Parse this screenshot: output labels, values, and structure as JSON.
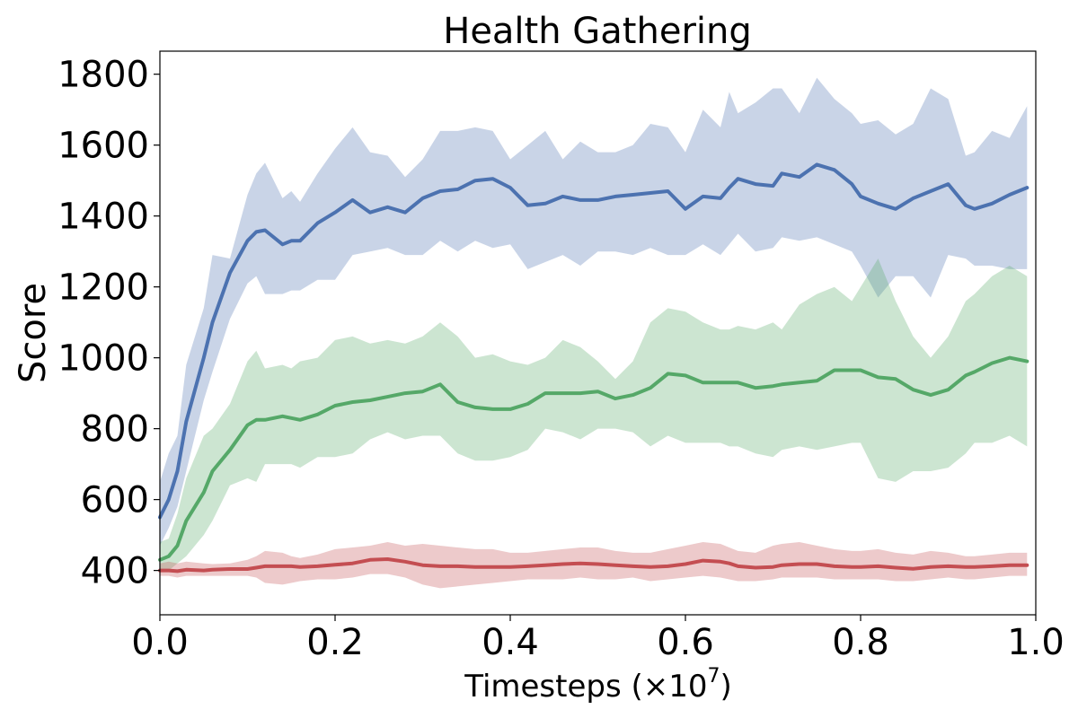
{
  "chart_data": {
    "type": "line",
    "title": "Health Gathering",
    "xlabel": "Timesteps (×10",
    "xlabel_exponent": "7",
    "xlabel_close": ")",
    "ylabel": "Score",
    "xlim": [
      0.0,
      1.0
    ],
    "ylim": [
      275,
      1865
    ],
    "xticks": [
      0.0,
      0.2,
      0.4,
      0.6,
      0.8,
      1.0
    ],
    "xtick_labels": [
      "0.0",
      "0.2",
      "0.4",
      "0.6",
      "0.8",
      "1.0"
    ],
    "yticks": [
      400,
      600,
      800,
      1000,
      1200,
      1400,
      1600,
      1800
    ],
    "ytick_labels": [
      "400",
      "600",
      "800",
      "1000",
      "1200",
      "1400",
      "1600",
      "1800"
    ],
    "grid": false,
    "legend": "none",
    "series": [
      {
        "color": "#4C72B0",
        "band_color": "#C8D3E6",
        "x": [
          0.0,
          0.01,
          0.02,
          0.03,
          0.05,
          0.06,
          0.08,
          0.1,
          0.11,
          0.12,
          0.14,
          0.15,
          0.16,
          0.18,
          0.2,
          0.22,
          0.24,
          0.26,
          0.28,
          0.3,
          0.32,
          0.34,
          0.36,
          0.38,
          0.4,
          0.42,
          0.44,
          0.46,
          0.48,
          0.5,
          0.52,
          0.54,
          0.56,
          0.58,
          0.6,
          0.62,
          0.64,
          0.65,
          0.66,
          0.68,
          0.7,
          0.71,
          0.73,
          0.75,
          0.77,
          0.79,
          0.8,
          0.82,
          0.84,
          0.86,
          0.88,
          0.9,
          0.92,
          0.93,
          0.95,
          0.97,
          0.99
        ],
        "mean": [
          550,
          600,
          680,
          820,
          1000,
          1100,
          1240,
          1330,
          1355,
          1360,
          1320,
          1330,
          1330,
          1380,
          1410,
          1445,
          1410,
          1425,
          1410,
          1450,
          1470,
          1475,
          1500,
          1505,
          1480,
          1430,
          1435,
          1455,
          1445,
          1445,
          1455,
          1460,
          1465,
          1470,
          1420,
          1455,
          1450,
          1480,
          1505,
          1490,
          1485,
          1520,
          1510,
          1545,
          1530,
          1490,
          1455,
          1435,
          1420,
          1450,
          1470,
          1490,
          1430,
          1420,
          1435,
          1460,
          1480
        ],
        "upper": [
          650,
          730,
          780,
          980,
          1140,
          1290,
          1280,
          1460,
          1520,
          1550,
          1450,
          1470,
          1440,
          1520,
          1590,
          1650,
          1580,
          1570,
          1510,
          1560,
          1640,
          1640,
          1650,
          1640,
          1560,
          1600,
          1640,
          1560,
          1610,
          1580,
          1580,
          1600,
          1660,
          1650,
          1580,
          1700,
          1650,
          1750,
          1690,
          1720,
          1760,
          1760,
          1690,
          1790,
          1730,
          1690,
          1660,
          1670,
          1630,
          1660,
          1760,
          1730,
          1570,
          1580,
          1640,
          1620,
          1710
        ],
        "lower": [
          470,
          520,
          580,
          680,
          880,
          960,
          1110,
          1210,
          1230,
          1180,
          1180,
          1190,
          1190,
          1220,
          1220,
          1290,
          1300,
          1310,
          1290,
          1290,
          1330,
          1300,
          1330,
          1310,
          1320,
          1250,
          1270,
          1290,
          1260,
          1300,
          1300,
          1290,
          1310,
          1290,
          1290,
          1320,
          1290,
          1320,
          1350,
          1300,
          1310,
          1340,
          1330,
          1340,
          1320,
          1300,
          1260,
          1170,
          1230,
          1230,
          1170,
          1290,
          1280,
          1260,
          1260,
          1250,
          1250
        ]
      },
      {
        "color": "#55A868",
        "band_color": "#CCE4D1",
        "x": [
          0.0,
          0.01,
          0.02,
          0.03,
          0.05,
          0.06,
          0.08,
          0.1,
          0.11,
          0.12,
          0.14,
          0.15,
          0.16,
          0.18,
          0.2,
          0.22,
          0.24,
          0.26,
          0.28,
          0.3,
          0.32,
          0.34,
          0.36,
          0.38,
          0.4,
          0.42,
          0.44,
          0.46,
          0.48,
          0.5,
          0.52,
          0.54,
          0.56,
          0.58,
          0.6,
          0.62,
          0.64,
          0.65,
          0.66,
          0.68,
          0.7,
          0.71,
          0.73,
          0.75,
          0.77,
          0.79,
          0.8,
          0.82,
          0.84,
          0.86,
          0.88,
          0.9,
          0.92,
          0.93,
          0.95,
          0.97,
          0.99
        ],
        "mean": [
          430,
          440,
          470,
          540,
          620,
          680,
          740,
          810,
          825,
          825,
          835,
          830,
          825,
          840,
          865,
          875,
          880,
          890,
          900,
          905,
          925,
          875,
          860,
          855,
          855,
          870,
          900,
          900,
          900,
          905,
          885,
          895,
          915,
          955,
          950,
          930,
          930,
          930,
          930,
          915,
          920,
          925,
          930,
          935,
          965,
          965,
          965,
          945,
          940,
          910,
          895,
          910,
          950,
          960,
          985,
          1000,
          990
        ],
        "upper": [
          480,
          490,
          560,
          660,
          780,
          800,
          870,
          990,
          1020,
          970,
          980,
          970,
          990,
          1000,
          1050,
          1060,
          1040,
          1050,
          1040,
          1060,
          1100,
          1060,
          1000,
          1010,
          990,
          980,
          1000,
          1050,
          1030,
          990,
          940,
          990,
          1100,
          1140,
          1130,
          1100,
          1080,
          1080,
          1090,
          1080,
          1100,
          1080,
          1150,
          1180,
          1200,
          1160,
          1200,
          1280,
          1160,
          1060,
          1000,
          1060,
          1160,
          1180,
          1230,
          1260,
          1230
        ],
        "lower": [
          400,
          400,
          420,
          440,
          500,
          540,
          640,
          660,
          650,
          700,
          700,
          700,
          690,
          720,
          720,
          730,
          770,
          790,
          770,
          780,
          780,
          730,
          710,
          710,
          720,
          740,
          800,
          790,
          770,
          800,
          800,
          790,
          750,
          780,
          760,
          760,
          760,
          750,
          750,
          730,
          720,
          740,
          750,
          740,
          750,
          760,
          760,
          660,
          650,
          680,
          680,
          690,
          730,
          760,
          760,
          780,
          750
        ]
      },
      {
        "color": "#C44E52",
        "band_color": "#EDC4C5",
        "x": [
          0.0,
          0.01,
          0.02,
          0.03,
          0.05,
          0.06,
          0.08,
          0.1,
          0.11,
          0.12,
          0.14,
          0.15,
          0.16,
          0.18,
          0.2,
          0.22,
          0.24,
          0.26,
          0.28,
          0.3,
          0.32,
          0.34,
          0.36,
          0.38,
          0.4,
          0.42,
          0.44,
          0.46,
          0.48,
          0.5,
          0.52,
          0.54,
          0.56,
          0.58,
          0.6,
          0.62,
          0.64,
          0.65,
          0.66,
          0.68,
          0.7,
          0.71,
          0.73,
          0.75,
          0.77,
          0.79,
          0.8,
          0.82,
          0.84,
          0.86,
          0.88,
          0.9,
          0.92,
          0.93,
          0.95,
          0.97,
          0.99
        ],
        "mean": [
          400,
          400,
          398,
          402,
          400,
          402,
          404,
          404,
          408,
          412,
          412,
          412,
          410,
          412,
          416,
          420,
          430,
          432,
          425,
          415,
          412,
          412,
          410,
          410,
          410,
          412,
          415,
          418,
          420,
          418,
          415,
          412,
          410,
          412,
          418,
          428,
          425,
          420,
          412,
          408,
          410,
          415,
          418,
          418,
          412,
          410,
          410,
          412,
          408,
          405,
          410,
          412,
          410,
          410,
          412,
          415,
          415
        ],
        "upper": [
          420,
          425,
          420,
          425,
          420,
          418,
          420,
          430,
          440,
          455,
          450,
          440,
          435,
          445,
          460,
          465,
          470,
          480,
          470,
          475,
          470,
          465,
          460,
          460,
          450,
          450,
          455,
          460,
          465,
          465,
          455,
          450,
          450,
          460,
          470,
          480,
          475,
          465,
          455,
          450,
          470,
          475,
          480,
          470,
          460,
          455,
          455,
          460,
          450,
          445,
          455,
          450,
          440,
          440,
          445,
          450,
          450
        ],
        "lower": [
          385,
          385,
          380,
          385,
          385,
          385,
          385,
          385,
          380,
          365,
          360,
          365,
          370,
          375,
          375,
          380,
          390,
          390,
          380,
          360,
          350,
          355,
          360,
          365,
          370,
          375,
          375,
          375,
          380,
          375,
          375,
          380,
          370,
          375,
          380,
          385,
          380,
          375,
          370,
          370,
          375,
          380,
          380,
          380,
          375,
          375,
          375,
          375,
          370,
          370,
          375,
          380,
          375,
          375,
          380,
          385,
          385
        ]
      }
    ]
  }
}
